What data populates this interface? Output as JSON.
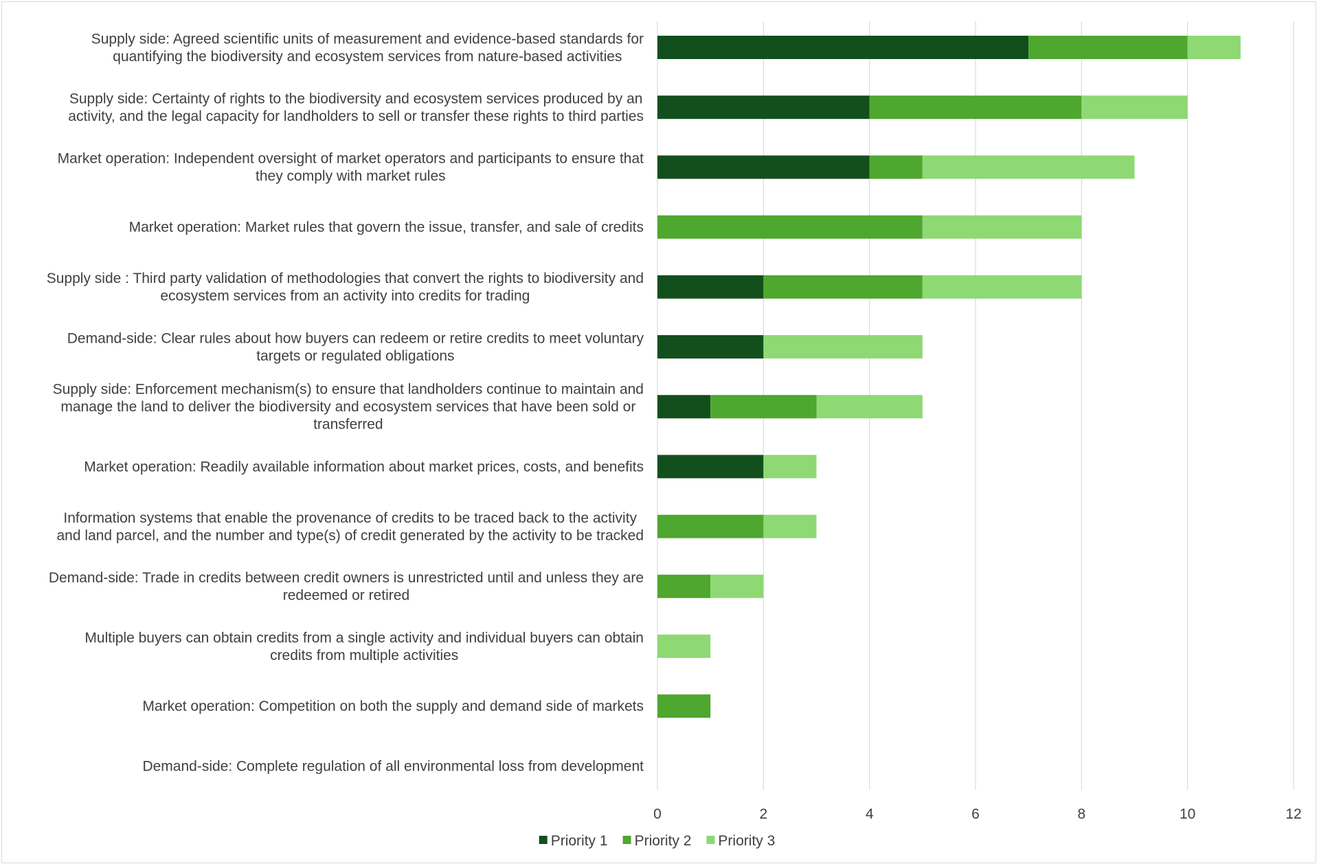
{
  "chart_data": {
    "type": "bar",
    "orientation": "horizontal",
    "stacked": true,
    "categories": [
      [
        "Supply side: Agreed scientific units of measurement and evidence-based standards for",
        "quantifying the biodiversity and ecosystem services from nature-based activities"
      ],
      [
        "Supply side: Certainty of rights to the biodiversity and ecosystem services produced by an",
        "activity, and the legal capacity for landholders to sell or transfer these rights to third parties"
      ],
      [
        "Market operation: Independent oversight of market operators and participants to ensure that",
        "they comply with market rules"
      ],
      [
        "Market operation: Market rules that govern the issue, transfer, and sale of credits"
      ],
      [
        "Supply side : Third party validation of methodologies that convert the rights to biodiversity and",
        "ecosystem services from an activity into credits for trading"
      ],
      [
        "Demand-side: Clear rules about how buyers can redeem or retire credits to meet voluntary",
        "targets or regulated obligations"
      ],
      [
        "Supply side: Enforcement mechanism(s) to ensure that landholders continue to maintain and",
        "manage the land to deliver the biodiversity and ecosystem services that have been sold or",
        "transferred"
      ],
      [
        "Market operation: Readily available information about market prices, costs, and benefits"
      ],
      [
        "Information systems that enable the provenance of credits to be traced back to the activity",
        "and land parcel, and the number and type(s) of credit generated by the activity to be tracked"
      ],
      [
        "Demand-side: Trade in credits between credit owners is unrestricted until and unless they are",
        "redeemed or retired"
      ],
      [
        "Multiple buyers can obtain credits from a single activity and individual buyers can obtain",
        "credits from multiple activities"
      ],
      [
        "Market operation: Competition on both the supply and demand side of markets"
      ],
      [
        "Demand-side: Complete regulation of all environmental loss from development"
      ]
    ],
    "series": [
      {
        "name": "Priority 1",
        "color": "#134f1c",
        "values": [
          7,
          4,
          4,
          0,
          2,
          2,
          1,
          2,
          0,
          0,
          0,
          0,
          0
        ]
      },
      {
        "name": "Priority 2",
        "color": "#4ea72e",
        "values": [
          3,
          4,
          1,
          5,
          3,
          0,
          2,
          0,
          2,
          1,
          0,
          1,
          0
        ]
      },
      {
        "name": "Priority 3",
        "color": "#8ed973",
        "values": [
          1,
          2,
          4,
          3,
          3,
          3,
          2,
          1,
          1,
          1,
          1,
          0,
          0
        ]
      }
    ],
    "xlim": [
      0,
      12
    ],
    "xticks": [
      "0",
      "2",
      "4",
      "6",
      "8",
      "10",
      "12"
    ],
    "grid": "vertical",
    "legend": "bottom-center"
  }
}
